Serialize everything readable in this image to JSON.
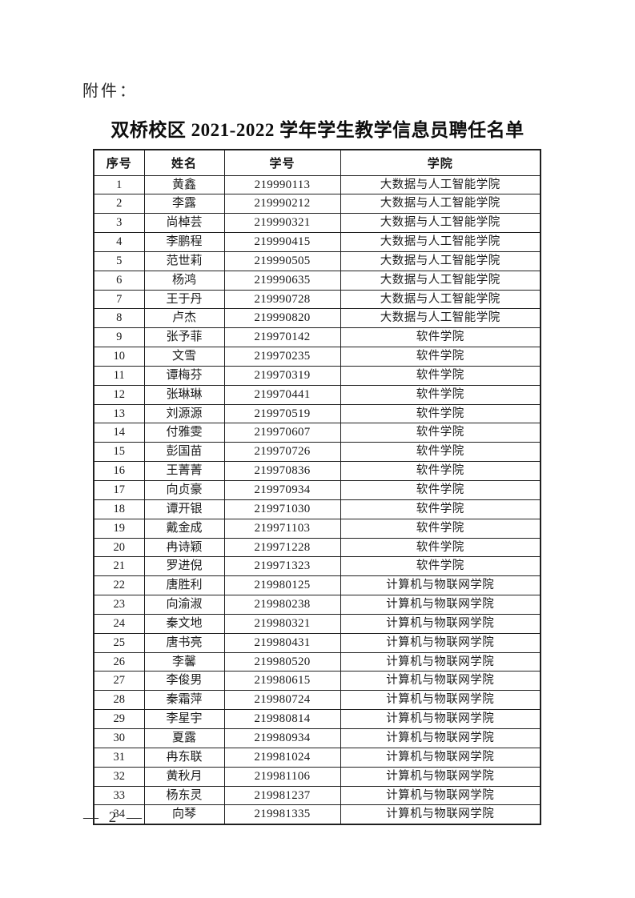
{
  "page": {
    "attachment_label": "附件：",
    "title": "双桥校区 2021-2022 学年学生教学信息员聘任名单",
    "footer_page_number": "— 2 —"
  },
  "colors": {
    "text": "#1b1b1b",
    "border": "#1f1f1f",
    "background": "#ffffff"
  },
  "table": {
    "columns": [
      "序号",
      "姓名",
      "学号",
      "学院"
    ],
    "column_keys": [
      "no",
      "name",
      "student_id",
      "college"
    ],
    "rows": [
      {
        "no": "1",
        "name": "黄鑫",
        "student_id": "219990113",
        "college": "大数据与人工智能学院"
      },
      {
        "no": "2",
        "name": "李露",
        "student_id": "219990212",
        "college": "大数据与人工智能学院"
      },
      {
        "no": "3",
        "name": "尚棹芸",
        "student_id": "219990321",
        "college": "大数据与人工智能学院"
      },
      {
        "no": "4",
        "name": "李鹏程",
        "student_id": "219990415",
        "college": "大数据与人工智能学院"
      },
      {
        "no": "5",
        "name": "范世莉",
        "student_id": "219990505",
        "college": "大数据与人工智能学院"
      },
      {
        "no": "6",
        "name": "杨鸿",
        "student_id": "219990635",
        "college": "大数据与人工智能学院"
      },
      {
        "no": "7",
        "name": "王于丹",
        "student_id": "219990728",
        "college": "大数据与人工智能学院"
      },
      {
        "no": "8",
        "name": "卢杰",
        "student_id": "219990820",
        "college": "大数据与人工智能学院"
      },
      {
        "no": "9",
        "name": "张予菲",
        "student_id": "219970142",
        "college": "软件学院"
      },
      {
        "no": "10",
        "name": "文雪",
        "student_id": "219970235",
        "college": "软件学院"
      },
      {
        "no": "11",
        "name": "谭梅芬",
        "student_id": "219970319",
        "college": "软件学院"
      },
      {
        "no": "12",
        "name": "张琳琳",
        "student_id": "219970441",
        "college": "软件学院"
      },
      {
        "no": "13",
        "name": "刘源源",
        "student_id": "219970519",
        "college": "软件学院"
      },
      {
        "no": "14",
        "name": "付雅雯",
        "student_id": "219970607",
        "college": "软件学院"
      },
      {
        "no": "15",
        "name": "彭国苗",
        "student_id": "219970726",
        "college": "软件学院"
      },
      {
        "no": "16",
        "name": "王菁菁",
        "student_id": "219970836",
        "college": "软件学院"
      },
      {
        "no": "17",
        "name": "向贞豪",
        "student_id": "219970934",
        "college": "软件学院"
      },
      {
        "no": "18",
        "name": "谭开银",
        "student_id": "219971030",
        "college": "软件学院"
      },
      {
        "no": "19",
        "name": "戴金成",
        "student_id": "219971103",
        "college": "软件学院"
      },
      {
        "no": "20",
        "name": "冉诗颖",
        "student_id": "219971228",
        "college": "软件学院"
      },
      {
        "no": "21",
        "name": "罗进倪",
        "student_id": "219971323",
        "college": "软件学院"
      },
      {
        "no": "22",
        "name": "唐胜利",
        "student_id": "219980125",
        "college": "计算机与物联网学院"
      },
      {
        "no": "23",
        "name": "向渝淑",
        "student_id": "219980238",
        "college": "计算机与物联网学院"
      },
      {
        "no": "24",
        "name": "秦文地",
        "student_id": "219980321",
        "college": "计算机与物联网学院"
      },
      {
        "no": "25",
        "name": "唐书亮",
        "student_id": "219980431",
        "college": "计算机与物联网学院"
      },
      {
        "no": "26",
        "name": "李馨",
        "student_id": "219980520",
        "college": "计算机与物联网学院"
      },
      {
        "no": "27",
        "name": "李俊男",
        "student_id": "219980615",
        "college": "计算机与物联网学院"
      },
      {
        "no": "28",
        "name": "秦霜萍",
        "student_id": "219980724",
        "college": "计算机与物联网学院"
      },
      {
        "no": "29",
        "name": "李星宇",
        "student_id": "219980814",
        "college": "计算机与物联网学院"
      },
      {
        "no": "30",
        "name": "夏露",
        "student_id": "219980934",
        "college": "计算机与物联网学院"
      },
      {
        "no": "31",
        "name": "冉东联",
        "student_id": "219981024",
        "college": "计算机与物联网学院"
      },
      {
        "no": "32",
        "name": "黄秋月",
        "student_id": "219981106",
        "college": "计算机与物联网学院"
      },
      {
        "no": "33",
        "name": "杨东灵",
        "student_id": "219981237",
        "college": "计算机与物联网学院"
      },
      {
        "no": "34",
        "name": "向琴",
        "student_id": "219981335",
        "college": "计算机与物联网学院"
      }
    ]
  }
}
